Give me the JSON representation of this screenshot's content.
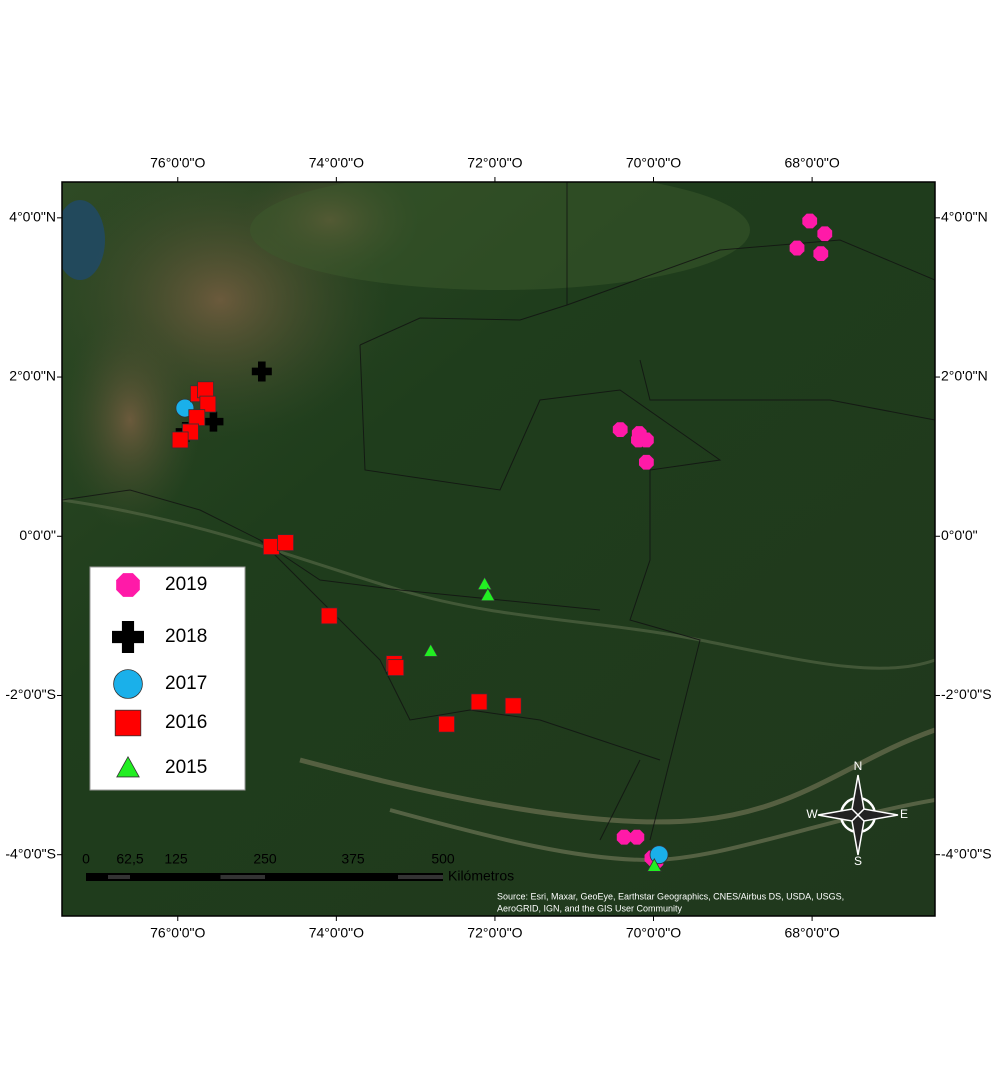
{
  "chart_data": {
    "type": "scatter",
    "xlim": [
      -77.46,
      -66.45
    ],
    "ylim": [
      -4.77,
      4.45
    ],
    "xticks": [
      {
        "value": -76,
        "label": "76°0'0\"O"
      },
      {
        "value": -74,
        "label": "74°0'0\"O"
      },
      {
        "value": -72,
        "label": "72°0'0\"O"
      },
      {
        "value": -70,
        "label": "70°0'0\"O"
      },
      {
        "value": -68,
        "label": "68°0'0\"O"
      }
    ],
    "yticks": [
      {
        "value": 4,
        "label": "4°0'0\"N"
      },
      {
        "value": 2,
        "label": "2°0'0\"N"
      },
      {
        "value": 0,
        "label": "0°0'0\""
      },
      {
        "value": -2,
        "label": "-2°0'0\"S"
      },
      {
        "value": -4,
        "label": "-4°0'0\"S"
      }
    ],
    "series": [
      {
        "name": "2019",
        "color": "#ff1aa8",
        "marker": "octagon",
        "x": [
          -68.03,
          -67.84,
          -68.19,
          -67.89,
          -70.42,
          -70.18,
          -70.19,
          -70.09,
          -70.09,
          -70.37,
          -70.21,
          -70.02,
          -69.97
        ],
        "y": [
          3.96,
          3.8,
          3.62,
          3.55,
          1.34,
          1.29,
          1.21,
          1.21,
          0.93,
          -3.78,
          -3.78,
          -4.04,
          -4.09
        ]
      },
      {
        "name": "2018",
        "color": "#000000",
        "marker": "cross",
        "x": [
          -74.94,
          -75.9,
          -75.55
        ],
        "y": [
          2.07,
          1.31,
          1.44
        ]
      },
      {
        "name": "2017",
        "color": "#1ab0ea",
        "marker": "circle",
        "x": [
          -75.91,
          -69.93
        ],
        "y": [
          1.61,
          -4.0
        ]
      },
      {
        "name": "2016",
        "color": "#ff0000",
        "marker": "square",
        "x": [
          -75.74,
          -75.65,
          -75.62,
          -75.76,
          -75.84,
          -75.97,
          -74.82,
          -74.64,
          -74.09,
          -73.27,
          -73.25,
          -72.61,
          -72.2,
          -71.77
        ],
        "y": [
          1.79,
          1.84,
          1.66,
          1.49,
          1.31,
          1.21,
          -0.13,
          -0.08,
          -1.0,
          -1.6,
          -1.65,
          -2.36,
          -2.08,
          -2.13
        ]
      },
      {
        "name": "2015",
        "color": "#22ee22",
        "marker": "triangle",
        "x": [
          -72.13,
          -72.09,
          -72.81,
          -69.99
        ],
        "y": [
          -0.6,
          -0.74,
          -1.44,
          -4.14
        ]
      }
    ],
    "legend": "lower left",
    "scale_bar": {
      "labels": [
        "0",
        "62,5",
        "125",
        "250",
        "375",
        "500"
      ],
      "unit": "Kilómetros"
    },
    "compass": {
      "north": "N",
      "south": "S",
      "east": "E",
      "west": "W"
    },
    "attribution": [
      "Source: Esri, Maxar, GeoEye, Earthstar Geographics, CNES/Airbus DS, USDA, USGS,",
      "AeroGRID, IGN, and the GIS User Community"
    ]
  }
}
